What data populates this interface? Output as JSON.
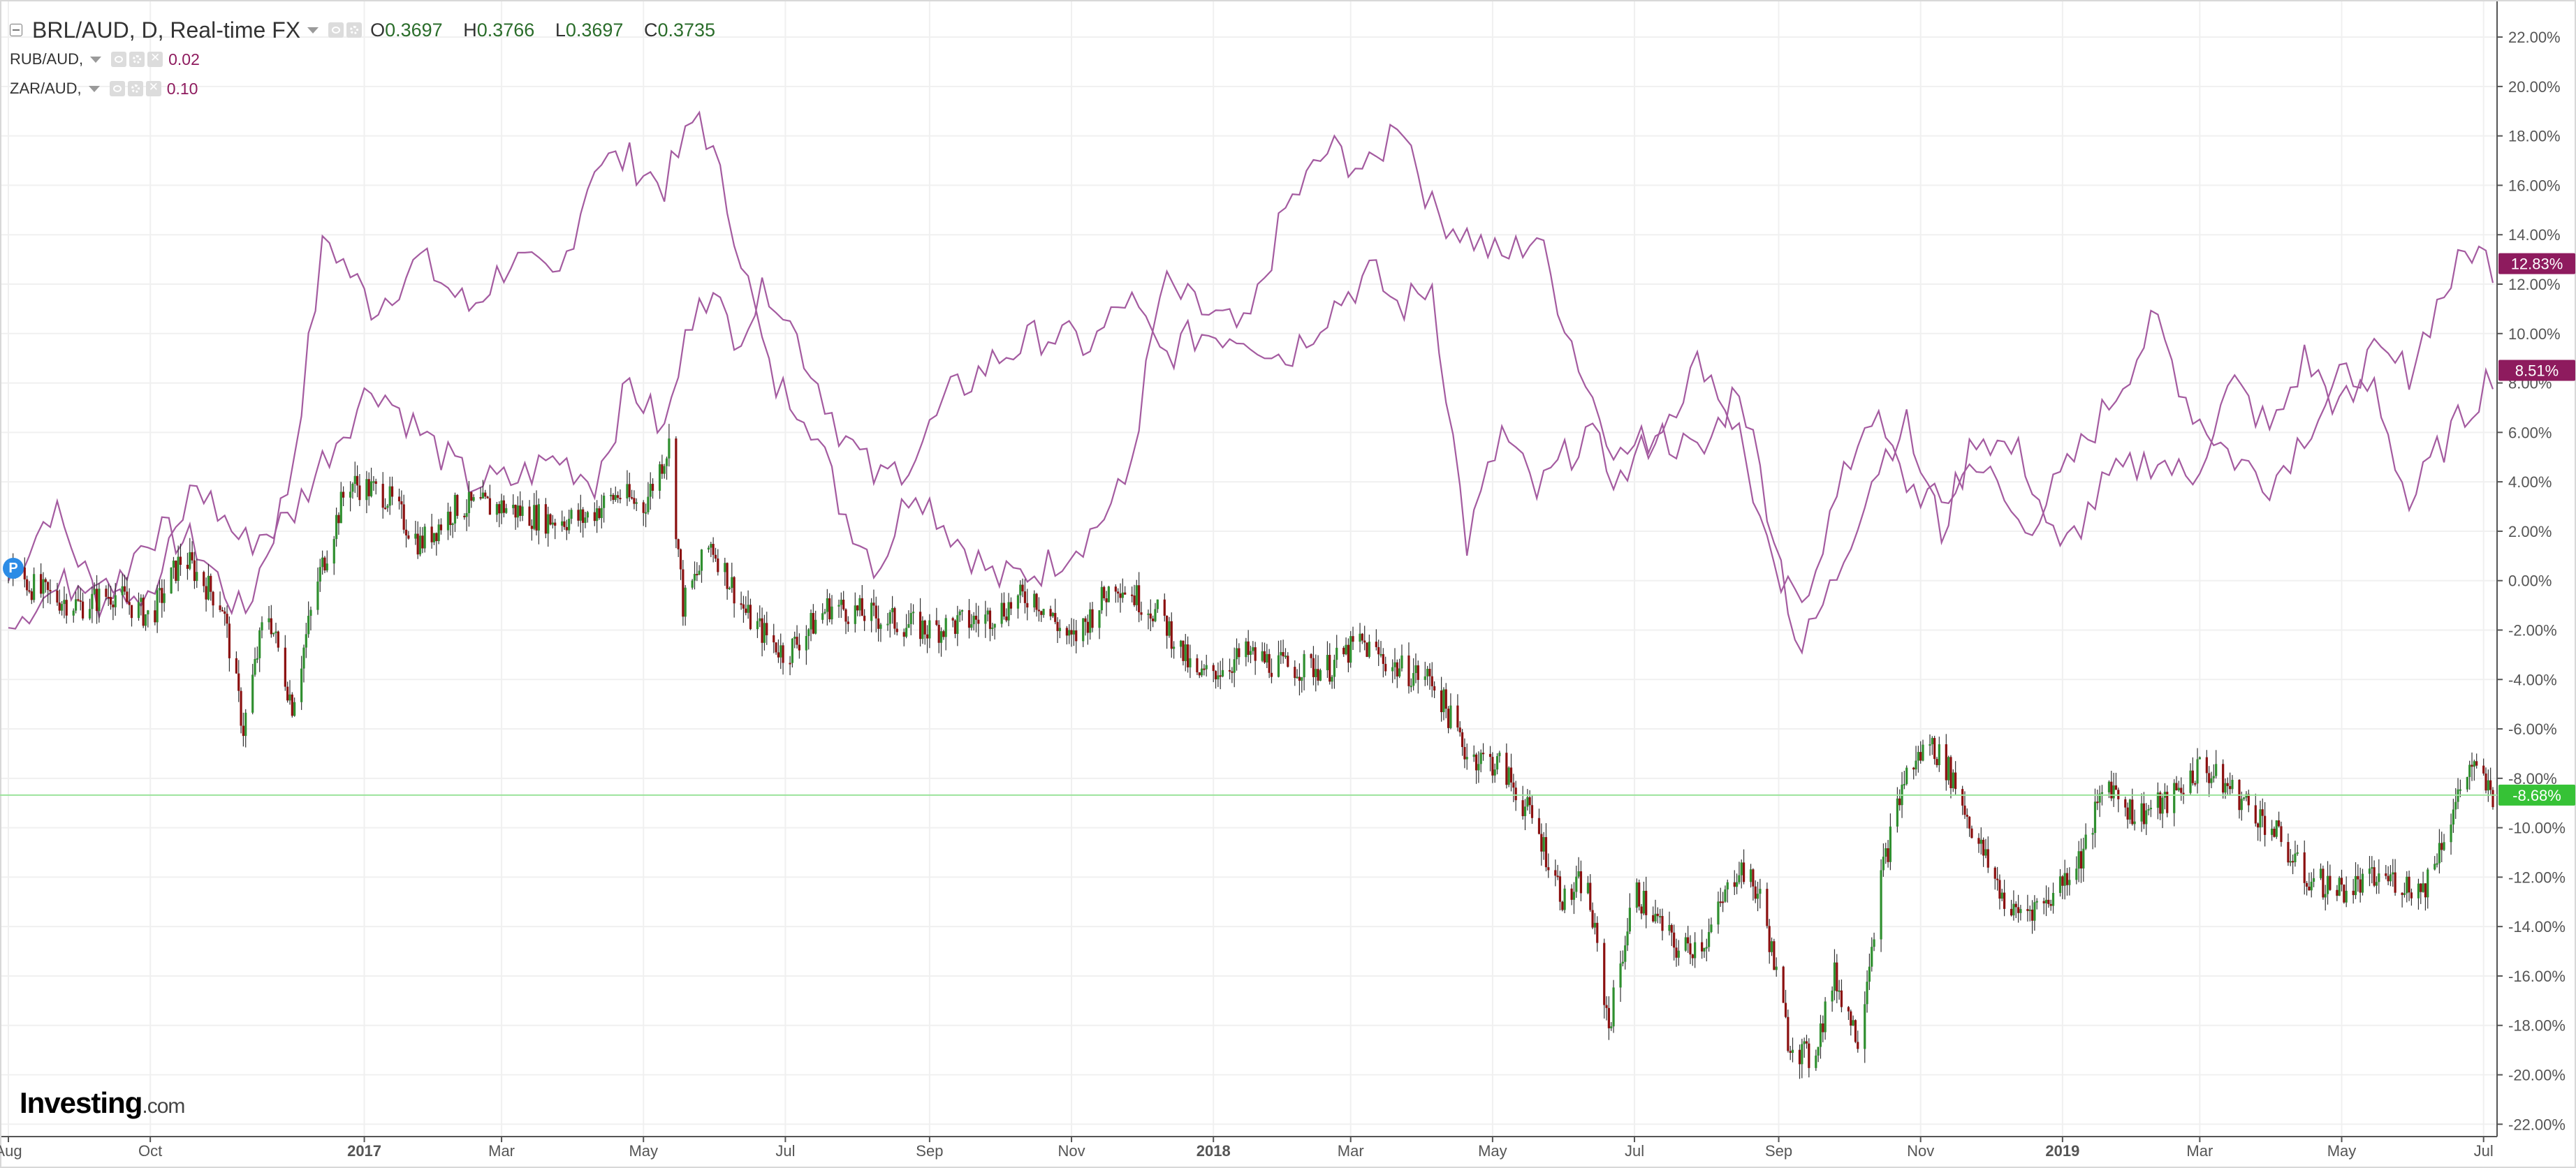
{
  "header": {
    "title": "BRL/AUD, D, Real-time FX",
    "ohlc": {
      "o_label": "O",
      "o": "0.3697",
      "h_label": "H",
      "h": "0.3766",
      "l_label": "L",
      "l": "0.3697",
      "c_label": "C",
      "c": "0.3735"
    },
    "overlays": [
      {
        "name": "RUB/AUD,",
        "value": "0.02"
      },
      {
        "name": "ZAR/AUD,",
        "value": "0.10"
      }
    ]
  },
  "badge": {
    "letter": "P"
  },
  "logo": {
    "brand": "Investing",
    "suffix": ".com"
  },
  "colors": {
    "up": "#2f8f2f",
    "down": "#8b1010",
    "overlay": "#a45ba0",
    "tag": "#8e1b5e",
    "current": "#36c236",
    "grid": "#f0f0f0"
  },
  "chart_data": {
    "type": "candlestick+line",
    "ylabel": "",
    "y_unit": "%",
    "ylim": [
      -22.5,
      23.5
    ],
    "y_ticks": [
      "22.00%",
      "20.00%",
      "18.00%",
      "16.00%",
      "14.00%",
      "12.00%",
      "10.00%",
      "8.00%",
      "6.00%",
      "4.00%",
      "2.00%",
      "0.00%",
      "-2.00%",
      "-4.00%",
      "-6.00%",
      "-8.00%",
      "-10.00%",
      "-12.00%",
      "-14.00%",
      "-16.00%",
      "-18.00%",
      "-20.00%",
      "-22.00%"
    ],
    "y_tick_values": [
      22,
      20,
      18,
      16,
      14,
      12,
      10,
      8,
      6,
      4,
      2,
      0,
      -2,
      -4,
      -6,
      -8,
      -10,
      -12,
      -14,
      -16,
      -18,
      -20,
      -22
    ],
    "x_start": "2016-08-01",
    "x_end": "2019-07-05",
    "x_ticks": [
      {
        "label": "Aug",
        "date": "2016-08-01",
        "bold": false
      },
      {
        "label": "Oct",
        "date": "2016-10-01",
        "bold": false
      },
      {
        "label": "2017",
        "date": "2017-01-01",
        "bold": true
      },
      {
        "label": "Mar",
        "date": "2017-03-01",
        "bold": false
      },
      {
        "label": "May",
        "date": "2017-05-01",
        "bold": false
      },
      {
        "label": "Jul",
        "date": "2017-07-01",
        "bold": false
      },
      {
        "label": "Sep",
        "date": "2017-09-01",
        "bold": false
      },
      {
        "label": "Nov",
        "date": "2017-11-01",
        "bold": false
      },
      {
        "label": "2018",
        "date": "2018-01-01",
        "bold": true
      },
      {
        "label": "Mar",
        "date": "2018-03-01",
        "bold": false
      },
      {
        "label": "May",
        "date": "2018-05-01",
        "bold": false
      },
      {
        "label": "Jul",
        "date": "2018-07-01",
        "bold": false
      },
      {
        "label": "Sep",
        "date": "2018-09-01",
        "bold": false
      },
      {
        "label": "Nov",
        "date": "2018-11-01",
        "bold": false
      },
      {
        "label": "2019",
        "date": "2019-01-01",
        "bold": true
      },
      {
        "label": "Mar",
        "date": "2019-03-01",
        "bold": false
      },
      {
        "label": "May",
        "date": "2019-05-01",
        "bold": false
      },
      {
        "label": "Jul",
        "date": "2019-07-01",
        "bold": false
      }
    ],
    "current_values": [
      {
        "series": "RUB/AUD",
        "label": "12.83%",
        "value": 12.83
      },
      {
        "series": "ZAR/AUD",
        "label": "8.51%",
        "value": 8.51
      },
      {
        "series": "BRL/AUD",
        "label": "-8.68%",
        "value": -8.68
      }
    ],
    "series": [
      {
        "name": "BRL/AUD",
        "style": "candlestick",
        "points": [
          [
            "2016-08-01",
            0.5
          ],
          [
            "2016-08-15",
            -0.5
          ],
          [
            "2016-09-01",
            -1.0
          ],
          [
            "2016-09-15",
            -0.5
          ],
          [
            "2016-10-01",
            -1.5
          ],
          [
            "2016-10-15",
            1.0
          ],
          [
            "2016-11-01",
            -1.0
          ],
          [
            "2016-11-10",
            -6.0
          ],
          [
            "2016-11-20",
            -1.0
          ],
          [
            "2016-12-01",
            -5.0
          ],
          [
            "2016-12-12",
            0.0
          ],
          [
            "2016-12-25",
            4.0
          ],
          [
            "2017-01-10",
            3.5
          ],
          [
            "2017-01-25",
            1.5
          ],
          [
            "2017-02-10",
            3.0
          ],
          [
            "2017-03-01",
            3.0
          ],
          [
            "2017-03-20",
            2.5
          ],
          [
            "2017-04-05",
            2.5
          ],
          [
            "2017-04-20",
            3.5
          ],
          [
            "2017-05-01",
            3.0
          ],
          [
            "2017-05-12",
            5.5
          ],
          [
            "2017-05-18",
            -1.0
          ],
          [
            "2017-05-30",
            1.5
          ],
          [
            "2017-06-15",
            -1.5
          ],
          [
            "2017-07-01",
            -3.0
          ],
          [
            "2017-07-20",
            -1.0
          ],
          [
            "2017-08-10",
            -1.5
          ],
          [
            "2017-09-01",
            -2.0
          ],
          [
            "2017-09-25",
            -1.5
          ],
          [
            "2017-10-15",
            -0.5
          ],
          [
            "2017-11-01",
            -2.5
          ],
          [
            "2017-11-20",
            0.0
          ],
          [
            "2017-12-10",
            -1.5
          ],
          [
            "2017-12-25",
            -4.0
          ],
          [
            "2018-01-15",
            -3.0
          ],
          [
            "2018-02-01",
            -3.5
          ],
          [
            "2018-02-20",
            -3.5
          ],
          [
            "2018-03-05",
            -2.5
          ],
          [
            "2018-03-20",
            -3.5
          ],
          [
            "2018-04-05",
            -4.0
          ],
          [
            "2018-04-20",
            -7.0
          ],
          [
            "2018-05-05",
            -7.5
          ],
          [
            "2018-05-20",
            -10.0
          ],
          [
            "2018-06-01",
            -13.0
          ],
          [
            "2018-06-10",
            -12.0
          ],
          [
            "2018-06-20",
            -18.0
          ],
          [
            "2018-07-01",
            -12.5
          ],
          [
            "2018-07-20",
            -15.0
          ],
          [
            "2018-08-01",
            -14.5
          ],
          [
            "2018-08-15",
            -11.5
          ],
          [
            "2018-08-25",
            -13.0
          ],
          [
            "2018-09-05",
            -18.5
          ],
          [
            "2018-09-15",
            -19.5
          ],
          [
            "2018-09-25",
            -16.0
          ],
          [
            "2018-10-05",
            -18.5
          ],
          [
            "2018-10-15",
            -12.0
          ],
          [
            "2018-10-25",
            -8.0
          ],
          [
            "2018-11-05",
            -6.5
          ],
          [
            "2018-11-15",
            -8.0
          ],
          [
            "2018-11-25",
            -10.5
          ],
          [
            "2018-12-10",
            -13.5
          ],
          [
            "2018-12-25",
            -13.0
          ],
          [
            "2019-01-10",
            -11.0
          ],
          [
            "2019-01-20",
            -8.0
          ],
          [
            "2019-02-01",
            -9.5
          ],
          [
            "2019-02-15",
            -9.0
          ],
          [
            "2019-03-01",
            -7.5
          ],
          [
            "2019-03-15",
            -8.5
          ],
          [
            "2019-04-01",
            -10.0
          ],
          [
            "2019-04-15",
            -12.0
          ],
          [
            "2019-05-01",
            -12.5
          ],
          [
            "2019-05-20",
            -12.0
          ],
          [
            "2019-06-05",
            -12.5
          ],
          [
            "2019-06-15",
            -10.0
          ],
          [
            "2019-06-25",
            -7.5
          ],
          [
            "2019-07-05",
            -8.68
          ]
        ]
      },
      {
        "name": "RUB/AUD",
        "style": "line",
        "points": [
          [
            "2016-08-01",
            0.0
          ],
          [
            "2016-08-20",
            3.0
          ],
          [
            "2016-09-10",
            -1.0
          ],
          [
            "2016-10-01",
            2.0
          ],
          [
            "2016-10-20",
            1.5
          ],
          [
            "2016-11-10",
            -1.5
          ],
          [
            "2016-11-30",
            4.0
          ],
          [
            "2016-12-15",
            14.0
          ],
          [
            "2017-01-05",
            11.0
          ],
          [
            "2017-01-25",
            13.0
          ],
          [
            "2017-02-15",
            11.0
          ],
          [
            "2017-03-05",
            13.0
          ],
          [
            "2017-03-25",
            12.0
          ],
          [
            "2017-04-10",
            17.0
          ],
          [
            "2017-04-25",
            17.0
          ],
          [
            "2017-05-10",
            16.0
          ],
          [
            "2017-05-25",
            19.0
          ],
          [
            "2017-06-10",
            14.0
          ],
          [
            "2017-06-25",
            8.0
          ],
          [
            "2017-07-10",
            7.0
          ],
          [
            "2017-07-25",
            3.0
          ],
          [
            "2017-08-10",
            0.5
          ],
          [
            "2017-08-25",
            4.0
          ],
          [
            "2017-09-10",
            2.0
          ],
          [
            "2017-09-30",
            0.0
          ],
          [
            "2017-10-20",
            0.5
          ],
          [
            "2017-11-10",
            2.0
          ],
          [
            "2017-11-25",
            4.0
          ],
          [
            "2017-12-10",
            12.0
          ],
          [
            "2017-12-25",
            11.0
          ],
          [
            "2018-01-15",
            10.0
          ],
          [
            "2018-02-01",
            15.0
          ],
          [
            "2018-02-20",
            17.5
          ],
          [
            "2018-03-10",
            16.5
          ],
          [
            "2018-03-22",
            19.0
          ],
          [
            "2018-04-05",
            15.0
          ],
          [
            "2018-04-20",
            14.0
          ],
          [
            "2018-05-05",
            13.0
          ],
          [
            "2018-05-20",
            14.0
          ],
          [
            "2018-06-10",
            8.0
          ],
          [
            "2018-06-25",
            5.0
          ],
          [
            "2018-07-10",
            6.0
          ],
          [
            "2018-07-30",
            9.0
          ],
          [
            "2018-08-15",
            6.0
          ],
          [
            "2018-08-30",
            0.0
          ],
          [
            "2018-09-10",
            -1.0
          ],
          [
            "2018-09-25",
            3.0
          ],
          [
            "2018-10-10",
            7.0
          ],
          [
            "2018-10-25",
            4.0
          ],
          [
            "2018-11-10",
            3.0
          ],
          [
            "2018-11-25",
            5.0
          ],
          [
            "2018-12-15",
            2.0
          ],
          [
            "2018-12-31",
            4.0
          ],
          [
            "2019-01-20",
            7.0
          ],
          [
            "2019-02-10",
            10.5
          ],
          [
            "2019-02-25",
            7.0
          ],
          [
            "2019-03-15",
            5.0
          ],
          [
            "2019-04-01",
            4.0
          ],
          [
            "2019-04-15",
            6.0
          ],
          [
            "2019-04-30",
            8.0
          ],
          [
            "2019-05-15",
            9.0
          ],
          [
            "2019-05-30",
            8.5
          ],
          [
            "2019-06-10",
            11.0
          ],
          [
            "2019-06-25",
            13.5
          ],
          [
            "2019-07-05",
            12.83
          ]
        ]
      },
      {
        "name": "ZAR/AUD",
        "style": "line",
        "points": [
          [
            "2016-08-01",
            -1.5
          ],
          [
            "2016-08-20",
            -0.5
          ],
          [
            "2016-09-10",
            0.5
          ],
          [
            "2016-10-01",
            -1.0
          ],
          [
            "2016-10-20",
            4.0
          ],
          [
            "2016-11-10",
            1.5
          ],
          [
            "2016-11-30",
            2.5
          ],
          [
            "2016-12-15",
            5.0
          ],
          [
            "2017-01-05",
            8.0
          ],
          [
            "2017-01-25",
            6.0
          ],
          [
            "2017-02-15",
            4.0
          ],
          [
            "2017-03-05",
            4.0
          ],
          [
            "2017-03-25",
            5.0
          ],
          [
            "2017-04-10",
            4.0
          ],
          [
            "2017-04-25",
            8.0
          ],
          [
            "2017-05-10",
            6.0
          ],
          [
            "2017-05-25",
            12.0
          ],
          [
            "2017-06-10",
            10.0
          ],
          [
            "2017-06-25",
            12.0
          ],
          [
            "2017-07-10",
            9.0
          ],
          [
            "2017-07-25",
            6.0
          ],
          [
            "2017-08-10",
            4.0
          ],
          [
            "2017-08-25",
            5.0
          ],
          [
            "2017-09-10",
            7.5
          ],
          [
            "2017-09-30",
            9.0
          ],
          [
            "2017-10-20",
            10.0
          ],
          [
            "2017-11-10",
            9.5
          ],
          [
            "2017-11-25",
            11.5
          ],
          [
            "2017-12-10",
            9.0
          ],
          [
            "2017-12-25",
            10.0
          ],
          [
            "2018-01-15",
            10.0
          ],
          [
            "2018-02-01",
            9.0
          ],
          [
            "2018-02-20",
            11.0
          ],
          [
            "2018-03-10",
            12.5
          ],
          [
            "2018-03-22",
            11.0
          ],
          [
            "2018-04-05",
            12.0
          ],
          [
            "2018-04-20",
            1.5
          ],
          [
            "2018-05-05",
            6.0
          ],
          [
            "2018-05-20",
            3.5
          ],
          [
            "2018-06-10",
            6.0
          ],
          [
            "2018-06-25",
            4.0
          ],
          [
            "2018-07-10",
            6.0
          ],
          [
            "2018-07-30",
            5.0
          ],
          [
            "2018-08-15",
            8.0
          ],
          [
            "2018-08-30",
            2.0
          ],
          [
            "2018-09-10",
            -3.0
          ],
          [
            "2018-09-25",
            0.0
          ],
          [
            "2018-10-10",
            4.0
          ],
          [
            "2018-10-25",
            6.5
          ],
          [
            "2018-11-10",
            2.0
          ],
          [
            "2018-11-25",
            6.0
          ],
          [
            "2018-12-15",
            5.0
          ],
          [
            "2018-12-31",
            1.0
          ],
          [
            "2019-01-20",
            4.0
          ],
          [
            "2019-02-10",
            5.0
          ],
          [
            "2019-02-25",
            4.0
          ],
          [
            "2019-03-15",
            8.0
          ],
          [
            "2019-04-01",
            6.0
          ],
          [
            "2019-04-15",
            9.0
          ],
          [
            "2019-04-30",
            7.0
          ],
          [
            "2019-05-15",
            8.0
          ],
          [
            "2019-05-30",
            3.0
          ],
          [
            "2019-06-10",
            5.0
          ],
          [
            "2019-06-25",
            7.0
          ],
          [
            "2019-07-05",
            8.51
          ]
        ]
      }
    ]
  }
}
